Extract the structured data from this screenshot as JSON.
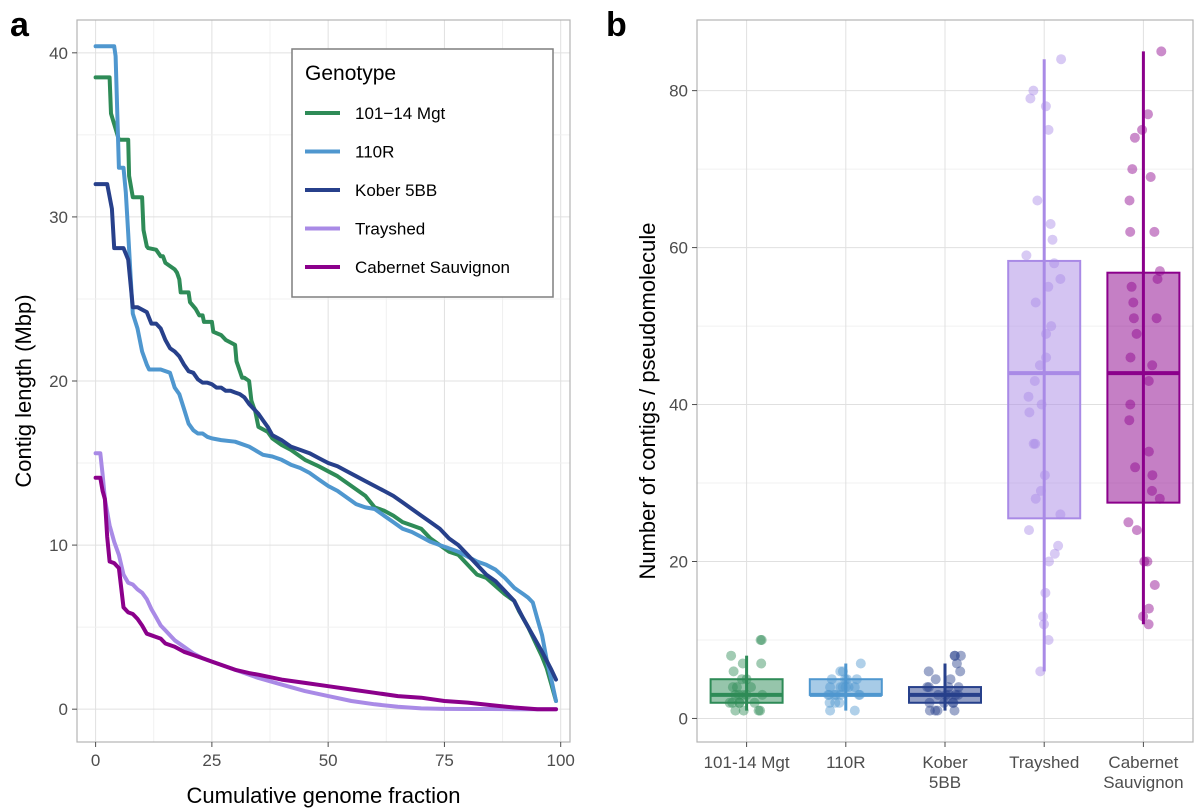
{
  "panels": {
    "a_label": "a",
    "b_label": "b"
  },
  "colors": {
    "101-14 Mgt": "#2e8b57",
    "110R": "#4f97cf",
    "Kober 5BB": "#27408b",
    "Trayshed": "#a98ae6",
    "Cabernet Sauvignon": "#8b008b"
  },
  "chart_data": [
    {
      "type": "line",
      "panel": "a",
      "xlabel": "Cumulative genome fraction",
      "ylabel": "Contig length (Mbp)",
      "xlim": [
        -4,
        102
      ],
      "ylim": [
        -2,
        42
      ],
      "xticks": [
        0,
        25,
        50,
        75,
        100
      ],
      "yticks": [
        0,
        10,
        20,
        30,
        40
      ],
      "grid": true,
      "legend": {
        "title": "Genotype",
        "position": "top-right"
      },
      "series": [
        {
          "name": "101−14 Mgt",
          "key": "101-14 Mgt",
          "x": [
            0,
            2,
            3,
            3.3,
            5,
            6,
            7,
            7.2,
            8,
            8.3,
            10,
            10.3,
            11,
            11.3,
            13,
            14,
            14.5,
            15,
            17,
            17.5,
            18,
            18.3,
            20,
            20.3,
            21.5,
            22.3,
            23,
            23.3,
            25,
            25.3,
            27,
            28,
            30,
            30.3,
            31.5,
            32,
            33,
            33.5,
            34,
            34.3,
            35,
            37,
            38,
            40,
            42,
            45,
            48,
            50,
            52,
            55,
            58,
            60,
            62,
            64,
            66,
            68,
            70,
            72,
            74,
            76,
            78,
            80,
            82,
            84,
            86,
            88,
            90,
            91,
            92,
            93,
            94,
            95,
            96,
            97,
            98,
            99
          ],
          "y": [
            38.5,
            38.5,
            38.5,
            36.3,
            34.7,
            34.7,
            34.7,
            32.5,
            31.2,
            31.2,
            31.2,
            29.2,
            28.2,
            28.1,
            28.0,
            27.6,
            27.6,
            27.2,
            26.8,
            26.6,
            26.2,
            25.4,
            25.4,
            24.8,
            24.4,
            24.0,
            24.0,
            23.6,
            23.6,
            23.0,
            22.8,
            22.5,
            22.2,
            21.2,
            20.2,
            20.2,
            20.0,
            18.8,
            18.4,
            18.2,
            17.2,
            16.9,
            16.5,
            16.1,
            15.8,
            15.2,
            14.8,
            14.5,
            14.2,
            13.6,
            13.0,
            12.3,
            12.1,
            11.8,
            11.4,
            11.2,
            11.0,
            10.4,
            10.0,
            9.6,
            9.4,
            8.8,
            8.2,
            8.0,
            7.5,
            7.0,
            6.6,
            6.0,
            5.5,
            5.0,
            4.4,
            3.8,
            3.2,
            2.5,
            1.5,
            0.5
          ]
        },
        {
          "name": "110R",
          "key": "110R",
          "x": [
            0,
            4,
            4.3,
            5,
            6,
            6.5,
            7,
            7.5,
            8,
            9,
            10,
            11,
            11.5,
            12,
            14,
            16,
            17,
            18,
            19,
            20,
            21,
            22,
            23,
            24,
            25,
            27,
            30,
            33,
            36,
            38,
            40,
            42,
            44,
            46,
            48,
            50,
            52,
            54,
            56,
            58,
            60,
            62,
            64,
            66,
            68,
            70,
            72,
            74,
            76,
            78,
            80,
            82,
            84,
            86,
            88,
            90,
            91,
            92,
            93,
            94,
            95,
            96,
            97,
            98,
            99
          ],
          "y": [
            40.4,
            40.4,
            39.8,
            33.0,
            33.0,
            31.5,
            29.0,
            26.5,
            24.1,
            23.2,
            21.8,
            21.0,
            20.7,
            20.7,
            20.7,
            20.5,
            19.6,
            19.2,
            18.3,
            17.4,
            17.0,
            16.8,
            16.8,
            16.6,
            16.5,
            16.4,
            16.3,
            16.0,
            15.5,
            15.4,
            15.2,
            14.9,
            14.7,
            14.4,
            14.0,
            13.6,
            13.3,
            12.9,
            12.5,
            12.3,
            12.2,
            11.8,
            11.4,
            11.0,
            10.8,
            10.5,
            10.2,
            10.0,
            9.8,
            9.6,
            9.3,
            9.0,
            8.8,
            8.5,
            8.0,
            7.4,
            7.2,
            7.0,
            6.8,
            6.5,
            5.5,
            4.5,
            3.0,
            1.8,
            0.5
          ]
        },
        {
          "name": "Kober 5BB",
          "key": "Kober 5BB",
          "x": [
            0,
            2.5,
            3.5,
            4,
            6,
            7,
            8,
            9,
            11,
            12,
            13,
            14,
            15,
            16,
            17,
            18,
            19,
            20,
            21,
            22,
            23,
            24,
            25,
            26,
            27,
            28,
            29,
            30,
            31,
            32,
            33,
            34,
            35,
            36,
            37,
            38,
            40,
            42,
            44,
            46,
            48,
            50,
            52,
            54,
            56,
            58,
            60,
            62,
            64,
            66,
            68,
            70,
            72,
            74,
            76,
            78,
            80,
            82,
            84,
            86,
            88,
            90,
            92,
            94,
            96,
            98,
            99
          ],
          "y": [
            32.0,
            32.0,
            30.5,
            28.1,
            28.1,
            27.4,
            24.5,
            24.5,
            24.2,
            23.5,
            23.5,
            23.2,
            22.5,
            22.0,
            21.8,
            21.5,
            21.0,
            20.6,
            20.5,
            20.1,
            19.9,
            19.9,
            19.8,
            19.6,
            19.6,
            19.4,
            19.4,
            19.3,
            19.2,
            19.0,
            18.6,
            18.3,
            18.0,
            17.6,
            17.2,
            16.7,
            16.4,
            16.0,
            15.8,
            15.6,
            15.3,
            15.0,
            14.8,
            14.5,
            14.2,
            13.9,
            13.6,
            13.3,
            13.0,
            12.6,
            12.2,
            11.8,
            11.4,
            11.0,
            10.4,
            10.0,
            9.4,
            8.8,
            8.2,
            7.8,
            7.2,
            6.6,
            5.5,
            4.5,
            3.5,
            2.4,
            1.8
          ]
        },
        {
          "name": "Trayshed",
          "key": "Trayshed",
          "x": [
            0,
            1,
            1.5,
            2,
            3,
            4,
            5,
            6,
            7,
            8,
            9,
            10,
            11,
            12,
            13,
            14,
            15,
            17,
            19,
            21,
            23,
            25,
            27,
            30,
            35,
            40,
            45,
            50,
            55,
            60,
            65,
            70,
            75,
            80,
            85,
            90,
            95,
            99
          ],
          "y": [
            15.6,
            15.6,
            14.3,
            12.8,
            11.2,
            10.2,
            9.4,
            8.2,
            7.7,
            7.6,
            7.3,
            7.1,
            6.7,
            6.1,
            5.6,
            5.1,
            4.8,
            4.2,
            3.8,
            3.4,
            3.1,
            2.9,
            2.7,
            2.4,
            1.9,
            1.5,
            1.1,
            0.8,
            0.5,
            0.3,
            0.15,
            0.05,
            0.02,
            0.01,
            0.01,
            0.0,
            0.0,
            0.0
          ]
        },
        {
          "name": "Cabernet Sauvignon",
          "key": "Cabernet Sauvignon",
          "x": [
            0,
            1,
            1.5,
            2,
            2.5,
            3,
            4,
            5,
            6,
            7,
            8,
            9,
            10,
            11,
            12,
            13,
            14,
            15,
            17,
            19,
            21,
            23,
            25,
            27,
            30,
            33,
            35,
            40,
            45,
            50,
            55,
            60,
            65,
            70,
            75,
            80,
            85,
            90,
            95,
            99
          ],
          "y": [
            14.1,
            14.1,
            13.3,
            12.8,
            10.5,
            9.0,
            8.9,
            8.6,
            6.2,
            5.9,
            5.8,
            5.5,
            5.1,
            4.6,
            4.5,
            4.4,
            4.3,
            4.0,
            3.8,
            3.5,
            3.3,
            3.1,
            2.9,
            2.7,
            2.4,
            2.2,
            2.1,
            1.8,
            1.6,
            1.4,
            1.2,
            1.0,
            0.8,
            0.7,
            0.5,
            0.4,
            0.25,
            0.1,
            0.0,
            0.0
          ]
        }
      ]
    },
    {
      "type": "box",
      "panel": "b",
      "xlabel": "",
      "ylabel": "Number of contigs / pseudomolecule",
      "ylim": [
        -3,
        89
      ],
      "yticks": [
        0,
        20,
        40,
        60,
        80
      ],
      "grid": true,
      "legend": "none",
      "categories": [
        "101-14 Mgt",
        "110R",
        "Kober\n5BB",
        "Trayshed",
        "Cabernet\nSauvignon"
      ],
      "groups": [
        {
          "key": "101-14 Mgt",
          "label": [
            "101-14 Mgt"
          ],
          "min": 1,
          "q1": 2,
          "median": 3,
          "q3": 5,
          "max": 8,
          "points": [
            10,
            10,
            8,
            7,
            7,
            6,
            5,
            5,
            4,
            4,
            4,
            3,
            3,
            3,
            3,
            3,
            2,
            2,
            2,
            2,
            2,
            1,
            1,
            1,
            1
          ]
        },
        {
          "key": "110R",
          "label": [
            "110R"
          ],
          "min": 1,
          "q1": 3,
          "median": 3,
          "q3": 5,
          "max": 7,
          "points": [
            7,
            6,
            6,
            5,
            5,
            5,
            5,
            4,
            4,
            4,
            4,
            4,
            4,
            3,
            3,
            3,
            3,
            3,
            3,
            3,
            2,
            2,
            2,
            1,
            1
          ]
        },
        {
          "key": "Kober 5BB",
          "label": [
            "Kober",
            "5BB"
          ],
          "min": 1,
          "q1": 2,
          "median": 3,
          "q3": 4,
          "max": 7,
          "points": [
            8,
            8,
            8,
            7,
            6,
            6,
            5,
            5,
            4,
            4,
            4,
            4,
            3,
            3,
            3,
            3,
            3,
            2,
            2,
            2,
            2,
            1,
            1,
            1,
            1
          ]
        },
        {
          "key": "Trayshed",
          "label": [
            "Trayshed"
          ],
          "min": 6,
          "q1": 25.5,
          "median": 44,
          "q3": 58.3,
          "max": 84,
          "points": [
            84,
            80,
            79,
            78,
            75,
            66,
            63,
            61,
            59,
            58,
            56,
            55,
            53,
            50,
            49,
            46,
            45,
            43,
            41,
            40,
            39,
            35,
            35,
            31,
            29,
            28,
            26,
            24,
            22,
            21,
            20,
            16,
            13,
            12,
            10,
            6
          ]
        },
        {
          "key": "Cabernet Sauvignon",
          "label": [
            "Cabernet",
            "Sauvignon"
          ],
          "min": 12,
          "q1": 27.5,
          "median": 44,
          "q3": 56.8,
          "max": 85,
          "points": [
            85,
            77,
            75,
            74,
            70,
            69,
            66,
            62,
            62,
            57,
            56,
            55,
            53,
            51,
            51,
            49,
            46,
            45,
            43,
            40,
            38,
            34,
            32,
            31,
            29,
            28,
            25,
            24,
            20,
            20,
            17,
            14,
            13,
            12
          ]
        }
      ]
    }
  ]
}
